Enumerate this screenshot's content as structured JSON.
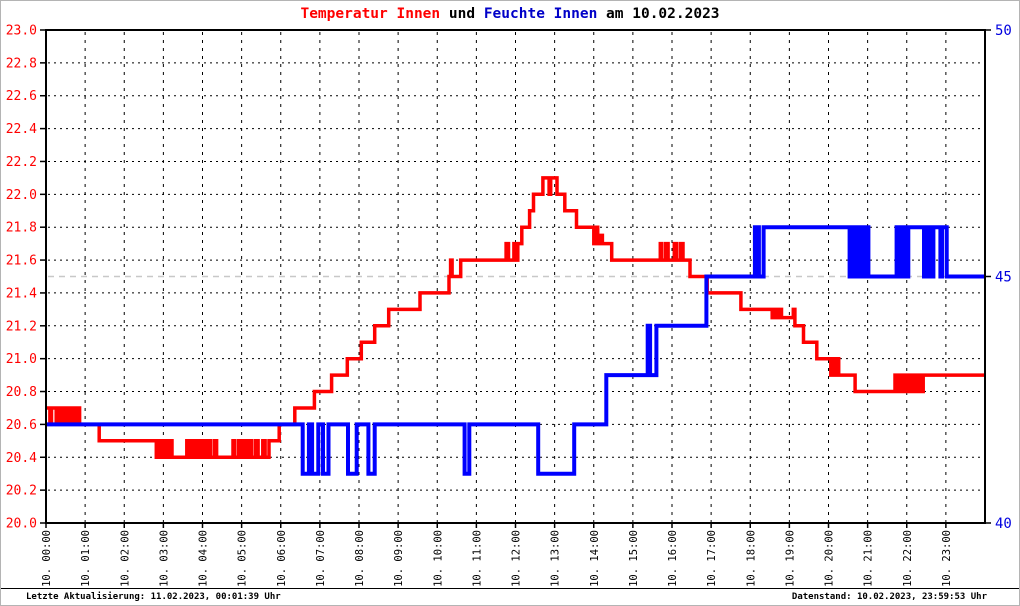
{
  "title": {
    "segments": [
      {
        "text": "Temperatur Innen",
        "color": "#ff0000"
      },
      {
        "text": " und ",
        "color": "#000000"
      },
      {
        "text": "Feuchte Innen",
        "color": "#0000c8"
      },
      {
        "text": " am 10.02.2023",
        "color": "#000000"
      }
    ],
    "full": "Temperatur Innen und Feuchte Innen am 10.02.2023"
  },
  "footer": {
    "left": "Letzte Aktualisierung: 11.02.2023, 00:01:39 Uhr",
    "right": "Datenstand: 10.02.2023, 23:59:53 Uhr"
  },
  "chart_data": {
    "type": "line",
    "title": "Temperatur Innen und Feuchte Innen am 10.02.2023",
    "grid": true,
    "legend": "none",
    "x_axis": {
      "unit": "hour of day",
      "range_hours": [
        0,
        24
      ],
      "tick_labels": [
        "10. 00:00",
        "10. 01:00",
        "10. 02:00",
        "10. 03:00",
        "10. 04:00",
        "10. 05:00",
        "10. 06:00",
        "10. 07:00",
        "10. 08:00",
        "10. 09:00",
        "10. 10:00",
        "10. 11:00",
        "10. 12:00",
        "10. 13:00",
        "10. 14:00",
        "10. 15:00",
        "10. 16:00",
        "10. 17:00",
        "10. 18:00",
        "10. 19:00",
        "10. 20:00",
        "10. 21:00",
        "10. 22:00",
        "10. 23:00"
      ],
      "label_color": "#000000"
    },
    "y_left": {
      "name": "Temperatur Innen",
      "min": 20.0,
      "max": 23.0,
      "step": 0.2,
      "tick_labels": [
        "23.0",
        "22.8",
        "22.6",
        "22.4",
        "22.2",
        "22.0",
        "21.8",
        "21.6",
        "21.4",
        "21.2",
        "21.0",
        "20.8",
        "20.6",
        "20.4",
        "20.2",
        "20.0"
      ],
      "label_color": "#ff0000"
    },
    "y_right": {
      "name": "Feuchte Innen",
      "min": 40,
      "max": 50,
      "ticks": [
        {
          "v": 50,
          "label": "50"
        },
        {
          "v": 45,
          "label": "45"
        },
        {
          "v": 40,
          "label": "40"
        }
      ],
      "label_color": "#0000e0",
      "midline_value": 45,
      "midline_color": "#c8c8c8"
    },
    "series": [
      {
        "name": "Temperatur Innen",
        "axis": "left",
        "color": "#ff0000",
        "stroke_width": 3.5,
        "step_points": [
          [
            0.0,
            20.7
          ],
          [
            0.1,
            20.6
          ],
          [
            0.14,
            20.7
          ],
          [
            0.26,
            20.6
          ],
          [
            0.3,
            20.7
          ],
          [
            0.36,
            20.6
          ],
          [
            0.4,
            20.7
          ],
          [
            0.46,
            20.6
          ],
          [
            0.52,
            20.7
          ],
          [
            0.56,
            20.6
          ],
          [
            0.62,
            20.7
          ],
          [
            0.68,
            20.6
          ],
          [
            0.72,
            20.7
          ],
          [
            0.78,
            20.6
          ],
          [
            0.82,
            20.7
          ],
          [
            0.86,
            20.6
          ],
          [
            1.36,
            20.5
          ],
          [
            2.82,
            20.4
          ],
          [
            2.88,
            20.5
          ],
          [
            2.94,
            20.4
          ],
          [
            3.02,
            20.5
          ],
          [
            3.08,
            20.4
          ],
          [
            3.16,
            20.5
          ],
          [
            3.22,
            20.4
          ],
          [
            3.6,
            20.5
          ],
          [
            3.64,
            20.4
          ],
          [
            3.72,
            20.5
          ],
          [
            3.78,
            20.4
          ],
          [
            3.86,
            20.5
          ],
          [
            3.92,
            20.4
          ],
          [
            4.0,
            20.5
          ],
          [
            4.06,
            20.4
          ],
          [
            4.14,
            20.5
          ],
          [
            4.2,
            20.4
          ],
          [
            4.3,
            20.5
          ],
          [
            4.36,
            20.4
          ],
          [
            4.78,
            20.5
          ],
          [
            4.82,
            20.4
          ],
          [
            4.92,
            20.5
          ],
          [
            4.98,
            20.4
          ],
          [
            5.06,
            20.5
          ],
          [
            5.12,
            20.4
          ],
          [
            5.2,
            20.5
          ],
          [
            5.26,
            20.4
          ],
          [
            5.36,
            20.5
          ],
          [
            5.42,
            20.4
          ],
          [
            5.54,
            20.5
          ],
          [
            5.6,
            20.4
          ],
          [
            5.7,
            20.5
          ],
          [
            5.96,
            20.6
          ],
          [
            6.36,
            20.7
          ],
          [
            6.86,
            20.8
          ],
          [
            7.3,
            20.9
          ],
          [
            7.7,
            21.0
          ],
          [
            8.06,
            21.1
          ],
          [
            8.4,
            21.2
          ],
          [
            8.76,
            21.3
          ],
          [
            9.56,
            21.4
          ],
          [
            10.3,
            21.5
          ],
          [
            10.34,
            21.6
          ],
          [
            10.38,
            21.5
          ],
          [
            10.6,
            21.6
          ],
          [
            11.76,
            21.7
          ],
          [
            11.82,
            21.6
          ],
          [
            11.96,
            21.7
          ],
          [
            12.02,
            21.6
          ],
          [
            12.06,
            21.7
          ],
          [
            12.16,
            21.8
          ],
          [
            12.36,
            21.9
          ],
          [
            12.46,
            22.0
          ],
          [
            12.7,
            22.1
          ],
          [
            12.86,
            22.0
          ],
          [
            12.9,
            22.1
          ],
          [
            13.06,
            22.0
          ],
          [
            13.26,
            21.9
          ],
          [
            13.56,
            21.8
          ],
          [
            14.0,
            21.7
          ],
          [
            14.04,
            21.8
          ],
          [
            14.1,
            21.7
          ],
          [
            14.16,
            21.75
          ],
          [
            14.22,
            21.7
          ],
          [
            14.46,
            21.6
          ],
          [
            15.7,
            21.7
          ],
          [
            15.74,
            21.6
          ],
          [
            15.84,
            21.7
          ],
          [
            15.9,
            21.6
          ],
          [
            16.06,
            21.7
          ],
          [
            16.12,
            21.6
          ],
          [
            16.22,
            21.7
          ],
          [
            16.28,
            21.6
          ],
          [
            16.46,
            21.5
          ],
          [
            16.9,
            21.4
          ],
          [
            17.76,
            21.3
          ],
          [
            18.56,
            21.25
          ],
          [
            18.62,
            21.3
          ],
          [
            18.68,
            21.25
          ],
          [
            18.74,
            21.3
          ],
          [
            18.8,
            21.25
          ],
          [
            19.1,
            21.3
          ],
          [
            19.14,
            21.2
          ],
          [
            19.36,
            21.1
          ],
          [
            19.7,
            21.0
          ],
          [
            20.06,
            20.9
          ],
          [
            20.1,
            21.0
          ],
          [
            20.16,
            20.9
          ],
          [
            20.22,
            21.0
          ],
          [
            20.26,
            20.9
          ],
          [
            20.68,
            20.8
          ],
          [
            21.7,
            20.9
          ],
          [
            21.74,
            20.8
          ],
          [
            21.8,
            20.9
          ],
          [
            21.86,
            20.8
          ],
          [
            21.94,
            20.9
          ],
          [
            22.0,
            20.8
          ],
          [
            22.06,
            20.9
          ],
          [
            22.12,
            20.8
          ],
          [
            22.2,
            20.9
          ],
          [
            22.26,
            20.8
          ],
          [
            22.32,
            20.9
          ],
          [
            22.36,
            20.8
          ],
          [
            22.42,
            20.9
          ]
        ]
      },
      {
        "name": "Feuchte Innen",
        "axis": "right",
        "color": "#0000ff",
        "stroke_width": 4,
        "step_points": [
          [
            0.0,
            42
          ],
          [
            6.56,
            41
          ],
          [
            6.72,
            42
          ],
          [
            6.8,
            41
          ],
          [
            6.96,
            42
          ],
          [
            7.08,
            41
          ],
          [
            7.22,
            42
          ],
          [
            7.72,
            41
          ],
          [
            7.94,
            42
          ],
          [
            8.24,
            41
          ],
          [
            8.4,
            42
          ],
          [
            10.7,
            41
          ],
          [
            10.82,
            42
          ],
          [
            12.58,
            41
          ],
          [
            13.5,
            42
          ],
          [
            14.32,
            43
          ],
          [
            15.38,
            44
          ],
          [
            15.44,
            43
          ],
          [
            15.6,
            44
          ],
          [
            16.88,
            45
          ],
          [
            18.12,
            46
          ],
          [
            18.22,
            45
          ],
          [
            18.34,
            46
          ],
          [
            20.54,
            45
          ],
          [
            20.58,
            46
          ],
          [
            20.62,
            45
          ],
          [
            20.68,
            46
          ],
          [
            20.72,
            45
          ],
          [
            20.78,
            46
          ],
          [
            20.82,
            45
          ],
          [
            20.88,
            46
          ],
          [
            20.92,
            45
          ],
          [
            20.98,
            46
          ],
          [
            21.02,
            45
          ],
          [
            21.74,
            46
          ],
          [
            21.78,
            45
          ],
          [
            21.84,
            46
          ],
          [
            21.88,
            45
          ],
          [
            21.94,
            46
          ],
          [
            21.98,
            45
          ],
          [
            22.04,
            46
          ],
          [
            22.44,
            45
          ],
          [
            22.48,
            46
          ],
          [
            22.52,
            45
          ],
          [
            22.58,
            46
          ],
          [
            22.62,
            45
          ],
          [
            22.68,
            46
          ],
          [
            22.86,
            45
          ],
          [
            22.9,
            46
          ],
          [
            23.02,
            45
          ]
        ]
      }
    ]
  }
}
